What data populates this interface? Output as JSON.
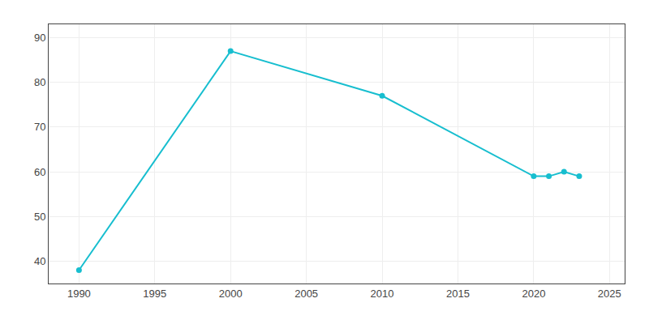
{
  "chart_data": {
    "type": "line",
    "x": [
      1990,
      2000,
      2010,
      2020,
      2021,
      2022,
      2023
    ],
    "values": [
      38,
      87,
      77,
      59,
      59,
      60,
      59
    ],
    "color": "#17becf",
    "marker": "circle",
    "xlim": [
      1988,
      2026
    ],
    "ylim": [
      35,
      93
    ],
    "xticks": [
      1990,
      1995,
      2000,
      2005,
      2010,
      2015,
      2020,
      2025
    ],
    "yticks": [
      40,
      50,
      60,
      70,
      80,
      90
    ],
    "grid": true
  }
}
